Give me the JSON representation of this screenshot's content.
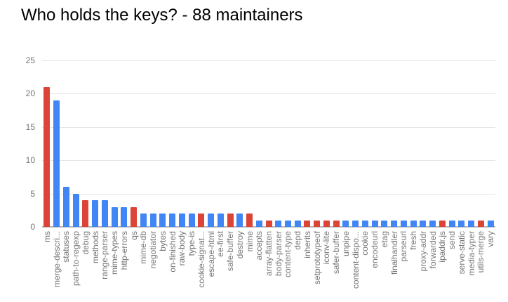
{
  "title": "Who holds the keys? - 88 maintainers",
  "chart_data": {
    "type": "bar",
    "title": "Who holds the keys? - 88 maintainers",
    "xlabel": "",
    "ylabel": "",
    "ylim": [
      0,
      25
    ],
    "y_ticks": [
      0,
      5,
      10,
      15,
      20,
      25
    ],
    "grid": true,
    "legend": "none",
    "palette": {
      "red": "#db4437",
      "blue": "#4285f4"
    },
    "axis_text_color": "#757575",
    "gridline_color": "#e6e6e6",
    "baseline_color": "#b7b7b7",
    "categories": [
      "ms",
      "merge-descri...",
      "statuses",
      "path-to-regexp",
      "debug",
      "methods",
      "range-parser",
      "mime-types",
      "http-errors",
      "qs",
      "mime-db",
      "negotiator",
      "bytes",
      "on-finished",
      "raw-body",
      "type-is",
      "cookie-signat...",
      "escape-html",
      "ee-first",
      "safe-buffer",
      "destroy",
      "mime",
      "accepts",
      "array-flatten",
      "body-parser",
      "content-type",
      "depd",
      "inherits",
      "setprototypeof",
      "iconv-lite",
      "safer-buffer",
      "unpipe",
      "content-dispo...",
      "cookie",
      "encodeurl",
      "etag",
      "finalhandler",
      "parseurl",
      "fresh",
      "proxy-addr",
      "forwarded",
      "ipaddr.js",
      "send",
      "serve-static",
      "media-typer",
      "utils-merge",
      "vary"
    ],
    "values": [
      21,
      19,
      6,
      5,
      4,
      4,
      4,
      3,
      3,
      3,
      2,
      2,
      2,
      2,
      2,
      2,
      2,
      2,
      2,
      2,
      2,
      2,
      1,
      1,
      1,
      1,
      1,
      1,
      1,
      1,
      1,
      1,
      1,
      1,
      1,
      1,
      1,
      1,
      1,
      1,
      1,
      1,
      1,
      1,
      1,
      1,
      1
    ],
    "bar_colors": [
      "red",
      "blue",
      "blue",
      "blue",
      "red",
      "blue",
      "blue",
      "blue",
      "blue",
      "red",
      "blue",
      "blue",
      "blue",
      "blue",
      "blue",
      "blue",
      "red",
      "blue",
      "blue",
      "red",
      "blue",
      "red",
      "blue",
      "red",
      "blue",
      "blue",
      "blue",
      "red",
      "red",
      "red",
      "red",
      "blue",
      "blue",
      "blue",
      "blue",
      "blue",
      "blue",
      "blue",
      "blue",
      "blue",
      "blue",
      "red",
      "blue",
      "blue",
      "blue",
      "red",
      "blue"
    ]
  }
}
